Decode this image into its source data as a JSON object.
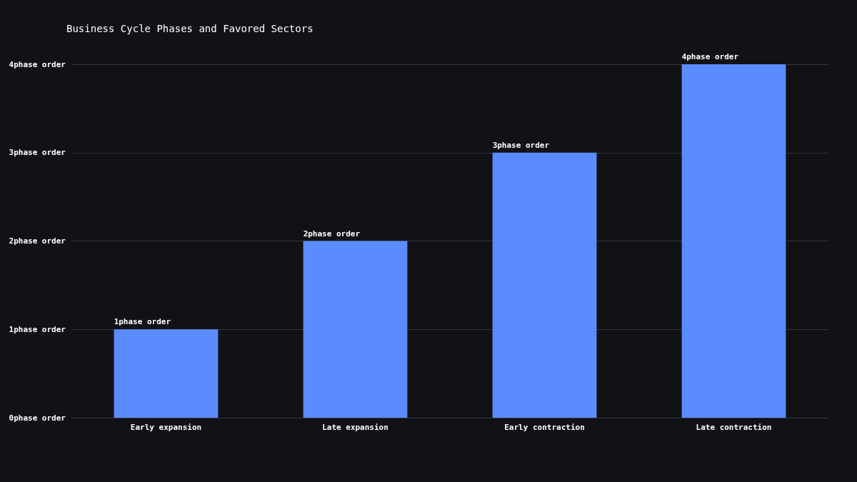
{
  "chart_data": {
    "type": "bar",
    "title": "Business Cycle Phases and Favored Sectors",
    "categories": [
      "Early expansion",
      "Late expansion",
      "Early contraction",
      "Late contraction"
    ],
    "values": [
      1,
      2,
      3,
      4
    ],
    "value_labels": [
      "1phase order",
      "2phase order",
      "3phase order",
      "4phase order"
    ],
    "color": "#5b8cff",
    "ylim": [
      0,
      4
    ],
    "yticks": [
      {
        "value": 0,
        "label": "0phase order"
      },
      {
        "value": 1,
        "label": "1phase order"
      },
      {
        "value": 2,
        "label": "2phase order"
      },
      {
        "value": 3,
        "label": "3phase order"
      },
      {
        "value": 4,
        "label": "4phase order"
      }
    ],
    "grid": "y"
  }
}
